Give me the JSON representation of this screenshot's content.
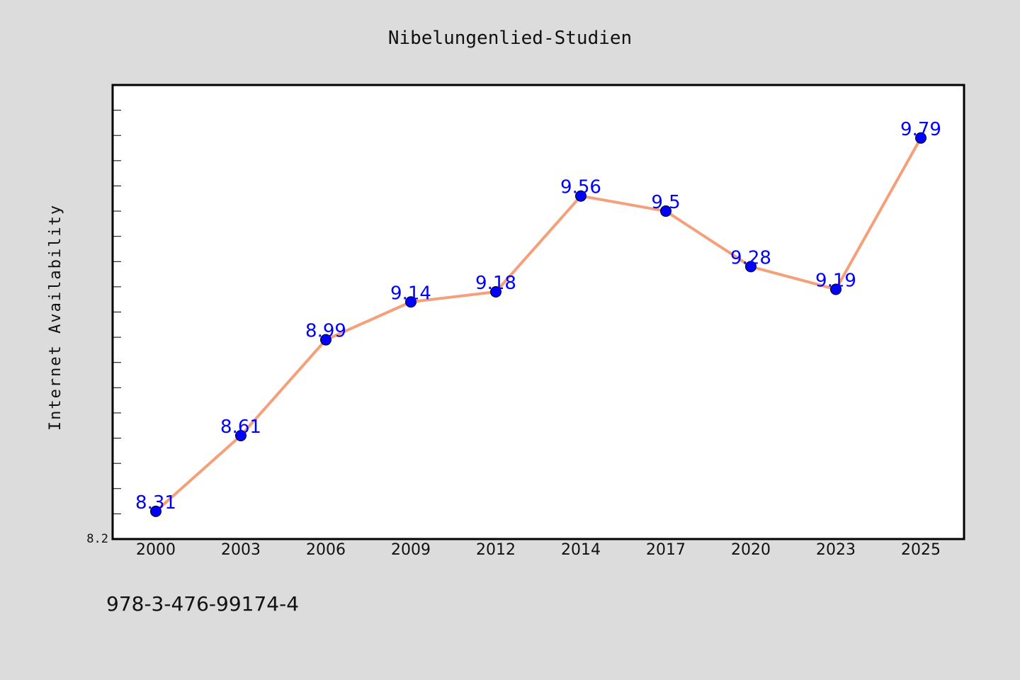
{
  "chart_data": {
    "type": "line",
    "title": "Nibelungenlied-Studien",
    "xlabel": "",
    "ylabel": "Internet Availability",
    "categories": [
      "2000",
      "2003",
      "2006",
      "2009",
      "2012",
      "2014",
      "2017",
      "2020",
      "2023",
      "2025"
    ],
    "series": [
      {
        "values": [
          8.31,
          8.61,
          8.99,
          9.14,
          9.18,
          9.56,
          9.5,
          9.28,
          9.19,
          9.79
        ]
      }
    ],
    "ytick_labels": [
      "8.2"
    ],
    "ylim": [
      8.2,
      10.0
    ],
    "grid": false,
    "legend": "none",
    "line_color": "#f4a07a",
    "marker_color": "#0000ff",
    "label_color": "#0000ff"
  },
  "footer": {
    "isbn": "978-3-476-99174-4"
  }
}
